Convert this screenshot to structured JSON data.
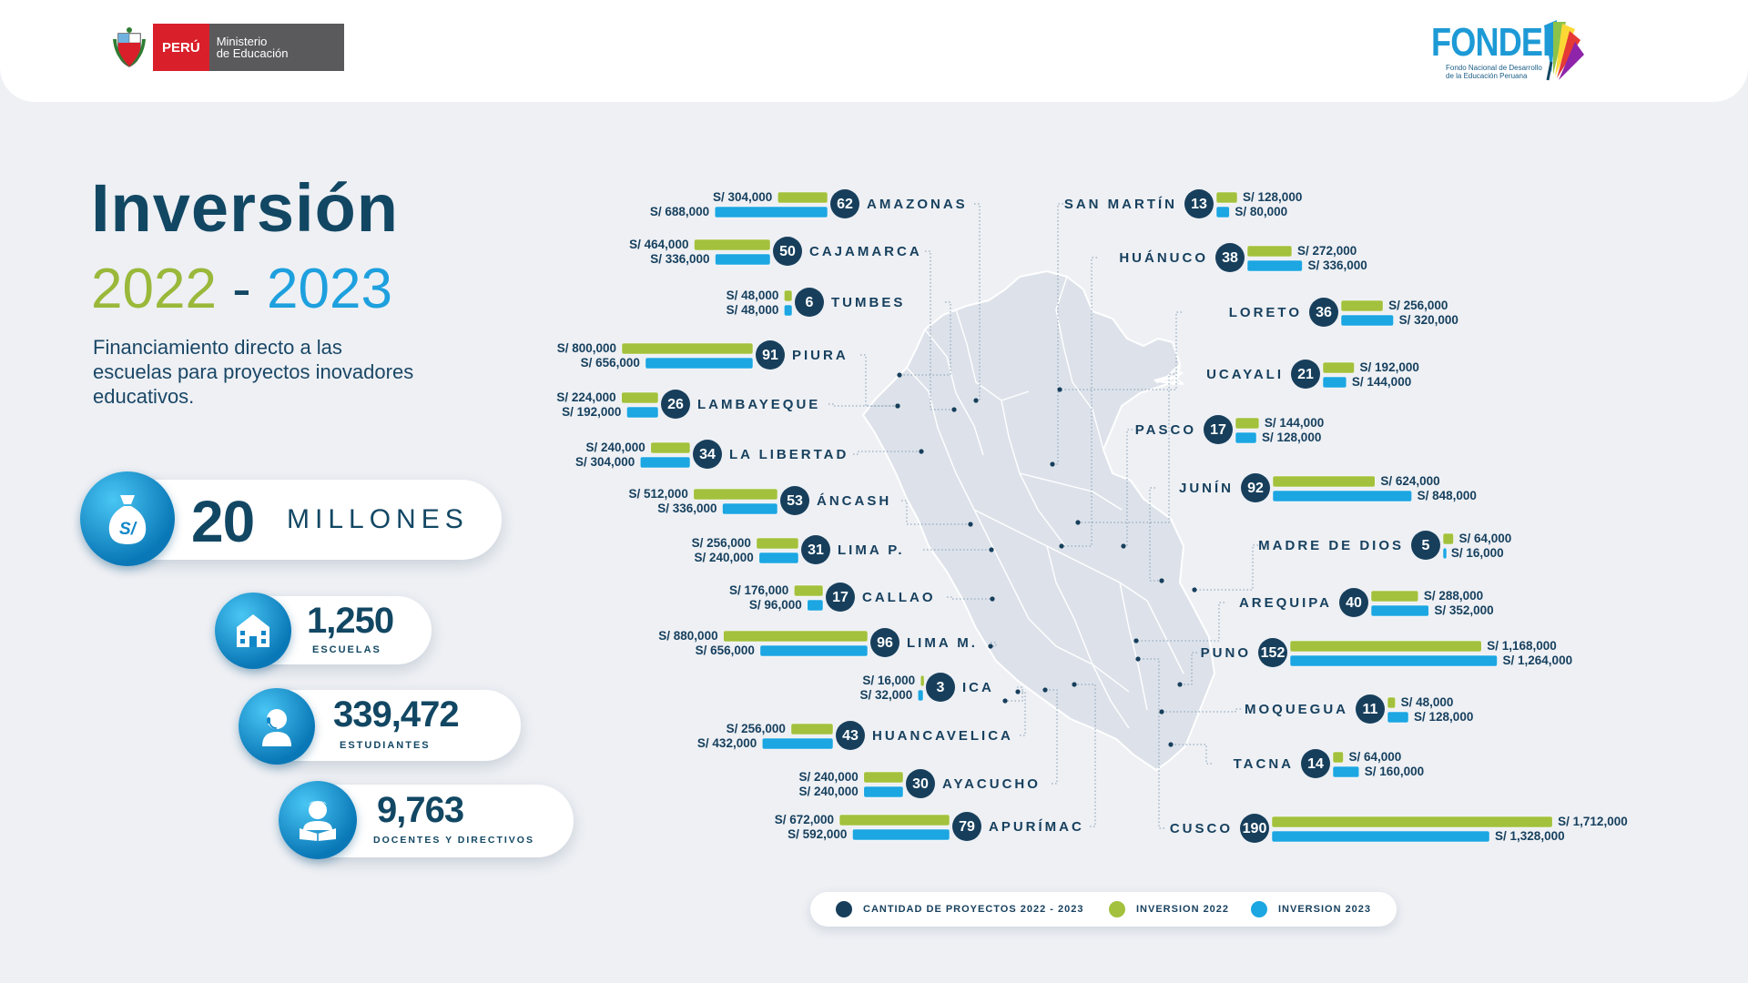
{
  "header": {
    "gov_country": "PERÚ",
    "gov_ministry_line1": "Ministerio",
    "gov_ministry_line2": "de Educación",
    "fondep_word": "FONDEP",
    "fondep_sub": "Fondo Nacional de Desarrollo de la Educación Peruana"
  },
  "hero": {
    "title": "Inversión",
    "year_start": "2022",
    "year_sep": " - ",
    "year_end": "2023",
    "description": "Financiamiento directo a las escuelas para proyectos inovadores educativos."
  },
  "stats": {
    "investment_value": "20",
    "investment_unit": "MILLONES",
    "schools_value": "1,250",
    "schools_label": "ESCUELAS",
    "students_value": "339,472",
    "students_label": "ESTUDIANTES",
    "teachers_value": "9,763",
    "teachers_label": "DOCENTES Y DIRECTIVOS"
  },
  "legend": {
    "projects": "CANTIDAD DE PROYECTOS 2022 - 2023",
    "inv2022": "INVERSION 2022",
    "inv2023": "INVERSION 2023"
  },
  "colors": {
    "navy": "#173f5c",
    "green": "#a3c13c",
    "blue": "#1ca6e2"
  },
  "chart_data": {
    "type": "bar",
    "title": "Inversión 2022 - 2023",
    "series_names": [
      "CANTIDAD DE PROYECTOS 2022 - 2023",
      "INVERSION 2022",
      "INVERSION 2023"
    ],
    "left": [
      {
        "region": "AMAZONAS",
        "projects": 62,
        "inv2022": 304000,
        "inv2023": 688000
      },
      {
        "region": "CAJAMARCA",
        "projects": 50,
        "inv2022": 464000,
        "inv2023": 336000
      },
      {
        "region": "TUMBES",
        "projects": 6,
        "inv2022": 48000,
        "inv2023": 48000
      },
      {
        "region": "PIURA",
        "projects": 91,
        "inv2022": 800000,
        "inv2023": 656000
      },
      {
        "region": "LAMBAYEQUE",
        "projects": 26,
        "inv2022": 224000,
        "inv2023": 192000
      },
      {
        "region": "LA LIBERTAD",
        "projects": 34,
        "inv2022": 240000,
        "inv2023": 304000
      },
      {
        "region": "ÁNCASH",
        "projects": 53,
        "inv2022": 512000,
        "inv2023": 336000
      },
      {
        "region": "LIMA P.",
        "projects": 31,
        "inv2022": 256000,
        "inv2023": 240000
      },
      {
        "region": "CALLAO",
        "projects": 17,
        "inv2022": 176000,
        "inv2023": 96000
      },
      {
        "region": "LIMA M.",
        "projects": 96,
        "inv2022": 880000,
        "inv2023": 656000
      },
      {
        "region": "ICA",
        "projects": 3,
        "inv2022": 16000,
        "inv2023": 32000
      },
      {
        "region": "HUANCAVELICA",
        "projects": 43,
        "inv2022": 256000,
        "inv2023": 432000
      },
      {
        "region": "AYACUCHO",
        "projects": 30,
        "inv2022": 240000,
        "inv2023": 240000
      },
      {
        "region": "APURÍMAC",
        "projects": 79,
        "inv2022": 672000,
        "inv2023": 592000
      }
    ],
    "right": [
      {
        "region": "SAN MARTÍN",
        "projects": 13,
        "inv2022": 128000,
        "inv2023": 80000
      },
      {
        "region": "HUÁNUCO",
        "projects": 38,
        "inv2022": 272000,
        "inv2023": 336000
      },
      {
        "region": "LORETO",
        "projects": 36,
        "inv2022": 256000,
        "inv2023": 320000
      },
      {
        "region": "UCAYALI",
        "projects": 21,
        "inv2022": 192000,
        "inv2023": 144000
      },
      {
        "region": "PASCO",
        "projects": 17,
        "inv2022": 144000,
        "inv2023": 128000
      },
      {
        "region": "JUNÍN",
        "projects": 92,
        "inv2022": 624000,
        "inv2023": 848000
      },
      {
        "region": "MADRE DE DIOS",
        "projects": 5,
        "inv2022": 64000,
        "inv2023": 16000
      },
      {
        "region": "AREQUIPA",
        "projects": 40,
        "inv2022": 288000,
        "inv2023": 352000
      },
      {
        "region": "PUNO",
        "projects": 152,
        "inv2022": 1168000,
        "inv2023": 1264000
      },
      {
        "region": "MOQUEGUA",
        "projects": 11,
        "inv2022": 48000,
        "inv2023": 128000
      },
      {
        "region": "TACNA",
        "projects": 14,
        "inv2022": 64000,
        "inv2023": 160000
      },
      {
        "region": "CUSCO",
        "projects": 190,
        "inv2022": 1712000,
        "inv2023": 1328000
      }
    ]
  }
}
